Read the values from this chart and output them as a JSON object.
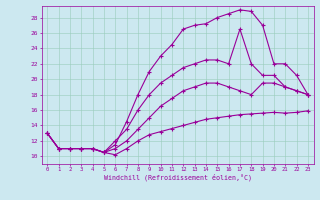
{
  "xlabel": "Windchill (Refroidissement éolien,°C)",
  "bg_color": "#cce8f0",
  "line_color": "#990099",
  "xmin": -0.5,
  "xmax": 23.5,
  "ymin": 9.0,
  "ymax": 29.5,
  "yticks": [
    10,
    12,
    14,
    16,
    18,
    20,
    22,
    24,
    26,
    28
  ],
  "xticks": [
    0,
    1,
    2,
    3,
    4,
    5,
    6,
    7,
    8,
    9,
    10,
    11,
    12,
    13,
    14,
    15,
    16,
    17,
    18,
    19,
    20,
    21,
    22,
    23
  ],
  "curves": [
    {
      "x": [
        0,
        1,
        2,
        3,
        4,
        5,
        6,
        7,
        8,
        9,
        10,
        11,
        12,
        13,
        14,
        15,
        16,
        17,
        18,
        19,
        20,
        21,
        22,
        23
      ],
      "y": [
        13,
        11,
        11,
        11,
        11,
        10.5,
        10.2,
        11.0,
        12.0,
        12.8,
        13.2,
        13.6,
        14.0,
        14.4,
        14.8,
        15.0,
        15.2,
        15.4,
        15.5,
        15.6,
        15.7,
        15.6,
        15.7,
        15.9
      ]
    },
    {
      "x": [
        0,
        1,
        2,
        3,
        4,
        5,
        6,
        7,
        8,
        9,
        10,
        11,
        12,
        13,
        14,
        15,
        16,
        17,
        18,
        19,
        20,
        21,
        22,
        23
      ],
      "y": [
        13,
        11,
        11,
        11,
        11,
        10.5,
        11.0,
        12.0,
        13.5,
        15.0,
        16.5,
        17.5,
        18.5,
        19.0,
        19.5,
        19.5,
        19.0,
        18.5,
        18.0,
        19.5,
        19.5,
        19.0,
        18.5,
        18.0
      ]
    },
    {
      "x": [
        0,
        1,
        2,
        3,
        4,
        5,
        6,
        7,
        8,
        9,
        10,
        11,
        12,
        13,
        14,
        15,
        16,
        17,
        18,
        19,
        20,
        21,
        22,
        23
      ],
      "y": [
        13,
        11,
        11,
        11,
        11,
        10.5,
        11.5,
        14.5,
        18.0,
        21.0,
        23.0,
        24.5,
        26.5,
        27.0,
        27.2,
        28.0,
        28.5,
        29.0,
        28.8,
        27.0,
        22.0,
        22.0,
        20.5,
        18.0
      ]
    },
    {
      "x": [
        0,
        1,
        2,
        3,
        4,
        5,
        6,
        7,
        8,
        9,
        10,
        11,
        12,
        13,
        14,
        15,
        16,
        17,
        18,
        19,
        20,
        21,
        22,
        23
      ],
      "y": [
        13,
        11,
        11,
        11,
        11,
        10.5,
        12.0,
        13.5,
        16.0,
        18.0,
        19.5,
        20.5,
        21.5,
        22.0,
        22.5,
        22.5,
        22.0,
        26.5,
        22.0,
        20.5,
        20.5,
        19.0,
        18.5,
        18.0
      ]
    }
  ]
}
